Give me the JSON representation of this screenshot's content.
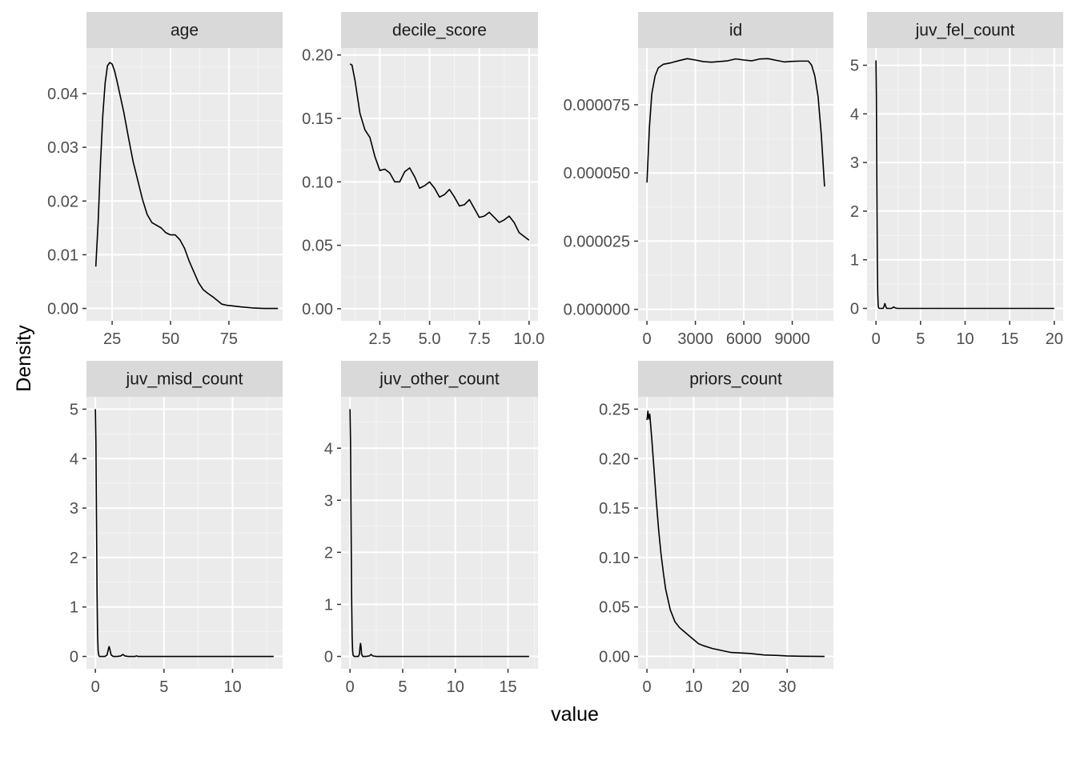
{
  "chart_data": {
    "type": "line",
    "xlabel": "value",
    "ylabel": "Density",
    "colors": {
      "panel_bg": "#ebebeb",
      "grid_major": "#ffffff",
      "grid_minor": "#f5f5f5",
      "strip_bg": "#d9d9d9",
      "line": "#000000",
      "tick_text": "#4d4d4d",
      "tick_mark": "#333333"
    },
    "panels": [
      {
        "label": "age",
        "xlim": [
          14,
          98
        ],
        "ylim": [
          -0.0023,
          0.0485
        ],
        "xticks": [
          {
            "value": 25,
            "label": "25"
          },
          {
            "value": 50,
            "label": "50"
          },
          {
            "value": 75,
            "label": "75"
          }
        ],
        "yticks": [
          {
            "value": 0,
            "label": "0.00"
          },
          {
            "value": 0.01,
            "label": "0.01"
          },
          {
            "value": 0.02,
            "label": "0.02"
          },
          {
            "value": 0.03,
            "label": "0.03"
          },
          {
            "value": 0.04,
            "label": "0.04"
          }
        ],
        "series": [
          {
            "x": [
              18,
              19,
              20,
              21,
              22,
              23,
              24,
              25,
              26,
              27,
              28,
              30,
              32,
              34,
              36,
              38,
              40,
              42,
              44,
              46,
              48,
              50,
              52,
              54,
              56,
              58,
              60,
              62,
              64,
              66,
              68,
              70,
              72,
              74,
              76,
              80,
              85,
              90,
              96
            ],
            "y": [
              0.0078,
              0.016,
              0.027,
              0.036,
              0.042,
              0.0452,
              0.0458,
              0.0455,
              0.0443,
              0.0425,
              0.0405,
              0.0365,
              0.0318,
              0.0273,
              0.0238,
              0.0203,
              0.0175,
              0.016,
              0.0155,
              0.015,
              0.0141,
              0.0137,
              0.0137,
              0.0128,
              0.0112,
              0.0088,
              0.0068,
              0.0048,
              0.0035,
              0.0028,
              0.0022,
              0.0015,
              0.0008,
              0.0006,
              0.0005,
              0.0003,
              0.0001,
              0.0,
              0.0
            ]
          }
        ]
      },
      {
        "label": "decile_score",
        "xlim": [
          0.55,
          10.45
        ],
        "ylim": [
          -0.0095,
          0.2055
        ],
        "xticks": [
          {
            "value": 2.5,
            "label": "2.5"
          },
          {
            "value": 5.0,
            "label": "5.0"
          },
          {
            "value": 7.5,
            "label": "7.5"
          },
          {
            "value": 10.0,
            "label": "10.0"
          }
        ],
        "yticks": [
          {
            "value": 0,
            "label": "0.00"
          },
          {
            "value": 0.05,
            "label": "0.05"
          },
          {
            "value": 0.1,
            "label": "0.10"
          },
          {
            "value": 0.15,
            "label": "0.15"
          },
          {
            "value": 0.2,
            "label": "0.20"
          }
        ],
        "series": [
          {
            "x": [
              1.0,
              1.1,
              1.25,
              1.5,
              1.75,
              2.0,
              2.25,
              2.5,
              2.75,
              3.0,
              3.25,
              3.5,
              3.75,
              4.0,
              4.25,
              4.5,
              4.75,
              5.0,
              5.25,
              5.5,
              5.75,
              6.0,
              6.25,
              6.5,
              6.75,
              7.0,
              7.25,
              7.5,
              7.75,
              8.0,
              8.25,
              8.5,
              8.75,
              9.0,
              9.25,
              9.5,
              9.75,
              10.0
            ],
            "y": [
              0.193,
              0.192,
              0.18,
              0.154,
              0.141,
              0.135,
              0.12,
              0.109,
              0.11,
              0.107,
              0.1,
              0.1,
              0.108,
              0.111,
              0.104,
              0.095,
              0.097,
              0.1,
              0.095,
              0.088,
              0.09,
              0.094,
              0.088,
              0.081,
              0.082,
              0.086,
              0.079,
              0.072,
              0.073,
              0.076,
              0.072,
              0.068,
              0.07,
              0.073,
              0.068,
              0.06,
              0.057,
              0.054
            ]
          }
        ]
      },
      {
        "label": "id",
        "xlim": [
          -550,
          11550
        ],
        "ylim": [
          -4.2e-06,
          9.58e-05
        ],
        "xticks": [
          {
            "value": 0,
            "label": "0"
          },
          {
            "value": 3000,
            "label": "3000"
          },
          {
            "value": 6000,
            "label": "6000"
          },
          {
            "value": 9000,
            "label": "9000"
          }
        ],
        "yticks": [
          {
            "value": 0,
            "label": "0.000000"
          },
          {
            "value": 2.5e-05,
            "label": "0.000025"
          },
          {
            "value": 5e-05,
            "label": "0.000050"
          },
          {
            "value": 7.5e-05,
            "label": "0.000075"
          }
        ],
        "series": [
          {
            "x": [
              1,
              150,
              300,
              500,
              700,
              1000,
              1500,
              2000,
              2500,
              3000,
              3500,
              4000,
              5000,
              5500,
              6000,
              6500,
              7000,
              7500,
              8000,
              8500,
              9000,
              9500,
              10000,
              10200,
              10400,
              10600,
              10800,
              11000
            ],
            "y": [
              4.65e-05,
              6.65e-05,
              7.9e-05,
              8.55e-05,
              8.85e-05,
              8.98e-05,
              9.04e-05,
              9.12e-05,
              9.19e-05,
              9.14e-05,
              9.08e-05,
              9.06e-05,
              9.11e-05,
              9.18e-05,
              9.14e-05,
              9.11e-05,
              9.18e-05,
              9.19e-05,
              9.13e-05,
              9.07e-05,
              9.09e-05,
              9.1e-05,
              9.1e-05,
              8.95e-05,
              8.55e-05,
              7.8e-05,
              6.4e-05,
              4.5e-05
            ]
          }
        ]
      },
      {
        "label": "juv_fel_count",
        "xlim": [
          -1.0,
          21.0
        ],
        "ylim": [
          -0.255,
          5.355
        ],
        "xticks": [
          {
            "value": 0,
            "label": "0"
          },
          {
            "value": 5,
            "label": "5"
          },
          {
            "value": 10,
            "label": "10"
          },
          {
            "value": 15,
            "label": "15"
          },
          {
            "value": 20,
            "label": "20"
          }
        ],
        "yticks": [
          {
            "value": 0,
            "label": "0"
          },
          {
            "value": 1,
            "label": "1"
          },
          {
            "value": 2,
            "label": "2"
          },
          {
            "value": 3,
            "label": "3"
          },
          {
            "value": 4,
            "label": "4"
          },
          {
            "value": 5,
            "label": "5"
          }
        ],
        "series": [
          {
            "x": [
              0,
              0.05,
              0.1,
              0.15,
              0.2,
              0.25,
              0.3,
              0.4,
              0.6,
              0.8,
              0.9,
              1.0,
              1.1,
              1.2,
              1.4,
              1.7,
              1.85,
              2.0,
              2.15,
              2.4,
              3,
              20
            ],
            "y": [
              5.1,
              4.3,
              2.6,
              1.0,
              0.3,
              0.06,
              0.01,
              0.0,
              0.0,
              0.0,
              0.04,
              0.1,
              0.04,
              0.0,
              0.0,
              0.0,
              0.01,
              0.03,
              0.01,
              0.0,
              0.0,
              0.0
            ]
          }
        ]
      },
      {
        "label": "juv_misd_count",
        "xlim": [
          -0.65,
          13.65
        ],
        "ylim": [
          -0.25,
          5.25
        ],
        "xticks": [
          {
            "value": 0,
            "label": "0"
          },
          {
            "value": 5,
            "label": "5"
          },
          {
            "value": 10,
            "label": "10"
          }
        ],
        "yticks": [
          {
            "value": 0,
            "label": "0"
          },
          {
            "value": 1,
            "label": "1"
          },
          {
            "value": 2,
            "label": "2"
          },
          {
            "value": 3,
            "label": "3"
          },
          {
            "value": 4,
            "label": "4"
          },
          {
            "value": 5,
            "label": "5"
          }
        ],
        "series": [
          {
            "x": [
              0,
              0.04,
              0.08,
              0.12,
              0.16,
              0.2,
              0.25,
              0.3,
              0.5,
              0.7,
              0.85,
              0.95,
              1.0,
              1.05,
              1.15,
              1.3,
              1.6,
              1.85,
              2.0,
              2.15,
              2.4,
              2.9,
              3.0,
              3.1,
              3.5,
              13
            ],
            "y": [
              5.0,
              4.3,
              2.8,
              1.3,
              0.45,
              0.12,
              0.02,
              0.0,
              0.0,
              0.0,
              0.03,
              0.15,
              0.2,
              0.15,
              0.03,
              0.0,
              0.0,
              0.01,
              0.04,
              0.01,
              0.0,
              0.0,
              0.01,
              0.0,
              0.0,
              0.0
            ]
          }
        ]
      },
      {
        "label": "juv_other_count",
        "xlim": [
          -0.85,
          17.85
        ],
        "ylim": [
          -0.2375,
          4.9875
        ],
        "xticks": [
          {
            "value": 0,
            "label": "0"
          },
          {
            "value": 5,
            "label": "5"
          },
          {
            "value": 10,
            "label": "10"
          },
          {
            "value": 15,
            "label": "15"
          }
        ],
        "yticks": [
          {
            "value": 0,
            "label": "0"
          },
          {
            "value": 1,
            "label": "1"
          },
          {
            "value": 2,
            "label": "2"
          },
          {
            "value": 3,
            "label": "3"
          },
          {
            "value": 4,
            "label": "4"
          }
        ],
        "series": [
          {
            "x": [
              0,
              0.05,
              0.1,
              0.15,
              0.2,
              0.25,
              0.3,
              0.4,
              0.6,
              0.8,
              0.9,
              0.95,
              1.0,
              1.05,
              1.1,
              1.2,
              1.5,
              1.85,
              2.0,
              2.15,
              2.5,
              17
            ],
            "y": [
              4.75,
              4.1,
              2.6,
              1.2,
              0.4,
              0.1,
              0.02,
              0.0,
              0.0,
              0.0,
              0.05,
              0.18,
              0.25,
              0.18,
              0.05,
              0.0,
              0.0,
              0.01,
              0.04,
              0.01,
              0.0,
              0.0
            ]
          }
        ]
      },
      {
        "label": "priors_count",
        "xlim": [
          -1.9,
          39.9
        ],
        "ylim": [
          -0.0125,
          0.2625
        ],
        "xticks": [
          {
            "value": 0,
            "label": "0"
          },
          {
            "value": 10,
            "label": "10"
          },
          {
            "value": 20,
            "label": "20"
          },
          {
            "value": 30,
            "label": "30"
          }
        ],
        "yticks": [
          {
            "value": 0,
            "label": "0.00"
          },
          {
            "value": 0.05,
            "label": "0.05"
          },
          {
            "value": 0.1,
            "label": "0.10"
          },
          {
            "value": 0.15,
            "label": "0.15"
          },
          {
            "value": 0.2,
            "label": "0.20"
          },
          {
            "value": 0.25,
            "label": "0.25"
          }
        ],
        "series": [
          {
            "x": [
              0,
              0.2,
              0.4,
              0.6,
              1,
              1.5,
              2,
              2.5,
              3,
              3.5,
              4,
              5,
              6,
              7,
              8,
              9,
              10,
              11,
              12,
              14,
              16,
              18,
              20,
              22,
              25,
              28,
              30,
              33,
              36,
              38
            ],
            "y": [
              0.239,
              0.248,
              0.24,
              0.245,
              0.222,
              0.19,
              0.157,
              0.128,
              0.104,
              0.085,
              0.068,
              0.047,
              0.035,
              0.029,
              0.025,
              0.021,
              0.017,
              0.013,
              0.011,
              0.008,
              0.006,
              0.004,
              0.0035,
              0.003,
              0.0015,
              0.001,
              0.0005,
              0.0002,
              0.0001,
              0.0
            ]
          }
        ]
      }
    ]
  }
}
